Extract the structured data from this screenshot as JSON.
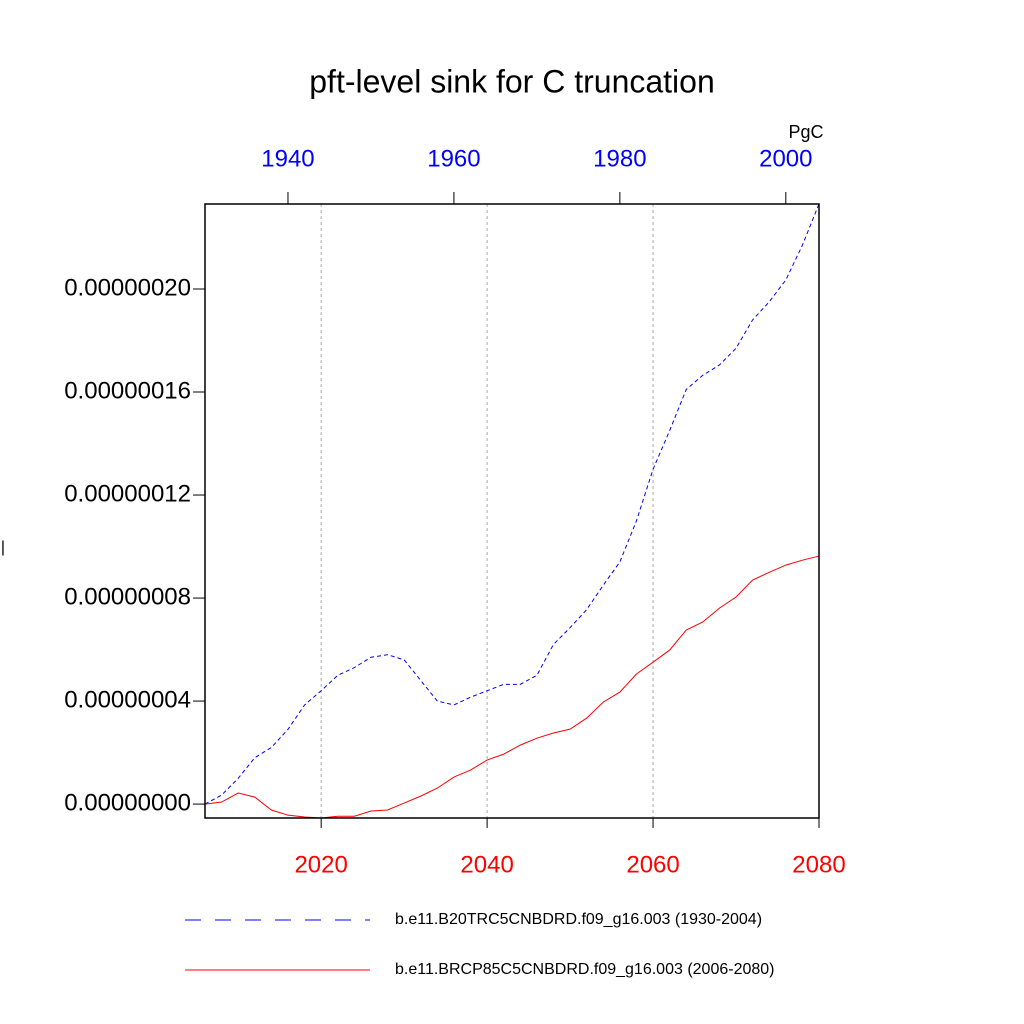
{
  "chart_data": {
    "type": "line",
    "title": "pft-level sink for C truncation",
    "ylabel": "|",
    "y_units": "PgC",
    "xlim": [
      2006,
      2080
    ],
    "xticks": [
      2020,
      2040,
      2060,
      2080
    ],
    "xtick_color": "#ff0000",
    "x2lim": [
      1930,
      2004
    ],
    "x2ticks": [
      1940,
      1960,
      1980,
      2000
    ],
    "x2tick_color": "#0000ff",
    "ylim": [
      -5.4e-09,
      2.33e-07
    ],
    "yticks": [
      {
        "value": 0,
        "label": "0.00000000"
      },
      {
        "value": 4e-08,
        "label": "0.00000004"
      },
      {
        "value": 8e-08,
        "label": "0.00000008"
      },
      {
        "value": 1.2e-07,
        "label": "0.00000012"
      },
      {
        "value": 1.6e-07,
        "label": "0.00000016"
      },
      {
        "value": 2e-07,
        "label": "0.00000020"
      }
    ],
    "grid": true,
    "series": [
      {
        "name": "b.e11.B20TRC5CNBDRD.f09_g16.003 (1930-2004)",
        "color": "#0000ff",
        "style": "dashed",
        "axis": "x2",
        "x": [
          1930,
          1932,
          1934,
          1936,
          1938,
          1940,
          1942,
          1944,
          1946,
          1948,
          1950,
          1952,
          1954,
          1956,
          1958,
          1960,
          1962,
          1964,
          1966,
          1968,
          1970,
          1972,
          1974,
          1976,
          1978,
          1980,
          1982,
          1984,
          1986,
          1988,
          1990,
          1992,
          1994,
          1996,
          1998,
          2000,
          2002,
          2004
        ],
        "values": [
          0,
          3.5e-09,
          1e-08,
          1.8e-08,
          2.2e-08,
          2.9e-08,
          3.85e-08,
          4.4e-08,
          5e-08,
          5.3e-08,
          5.7e-08,
          5.8e-08,
          5.6e-08,
          4.8e-08,
          4e-08,
          3.85e-08,
          4.15e-08,
          4.4e-08,
          4.65e-08,
          4.65e-08,
          5e-08,
          6.2e-08,
          6.85e-08,
          7.55e-08,
          8.5e-08,
          9.4e-08,
          1.1e-07,
          1.3e-07,
          1.45e-07,
          1.61e-07,
          1.665e-07,
          1.705e-07,
          1.77e-07,
          1.88e-07,
          1.95e-07,
          2.035e-07,
          2.17e-07,
          2.33e-07
        ]
      },
      {
        "name": "b.e11.BRCP85C5CNBDRD.f09_g16.003 (2006-2080)",
        "color": "#ff0000",
        "style": "solid",
        "axis": "x",
        "x": [
          2006,
          2008,
          2010,
          2012,
          2014,
          2016,
          2018,
          2020,
          2022,
          2024,
          2026,
          2028,
          2030,
          2032,
          2034,
          2036,
          2038,
          2040,
          2042,
          2044,
          2046,
          2048,
          2050,
          2052,
          2054,
          2056,
          2058,
          2060,
          2062,
          2064,
          2066,
          2068,
          2070,
          2072,
          2074,
          2076,
          2078,
          2080
        ],
        "values": [
          0,
          8e-10,
          4.3e-09,
          2.7e-09,
          -2.3e-09,
          -4.3e-09,
          -5e-09,
          -5.4e-09,
          -4.7e-09,
          -4.7e-09,
          -2.7e-09,
          -2.3e-09,
          4e-10,
          3.1e-09,
          6.2e-09,
          1.05e-08,
          1.32e-08,
          1.71e-08,
          1.94e-08,
          2.29e-08,
          2.56e-08,
          2.76e-08,
          2.91e-08,
          3.34e-08,
          3.96e-08,
          4.35e-08,
          5.05e-08,
          5.51e-08,
          5.98e-08,
          6.76e-08,
          7.07e-08,
          7.61e-08,
          8.04e-08,
          8.7e-08,
          9e-08,
          9.28e-08,
          9.47e-08,
          9.63e-08
        ]
      }
    ]
  }
}
